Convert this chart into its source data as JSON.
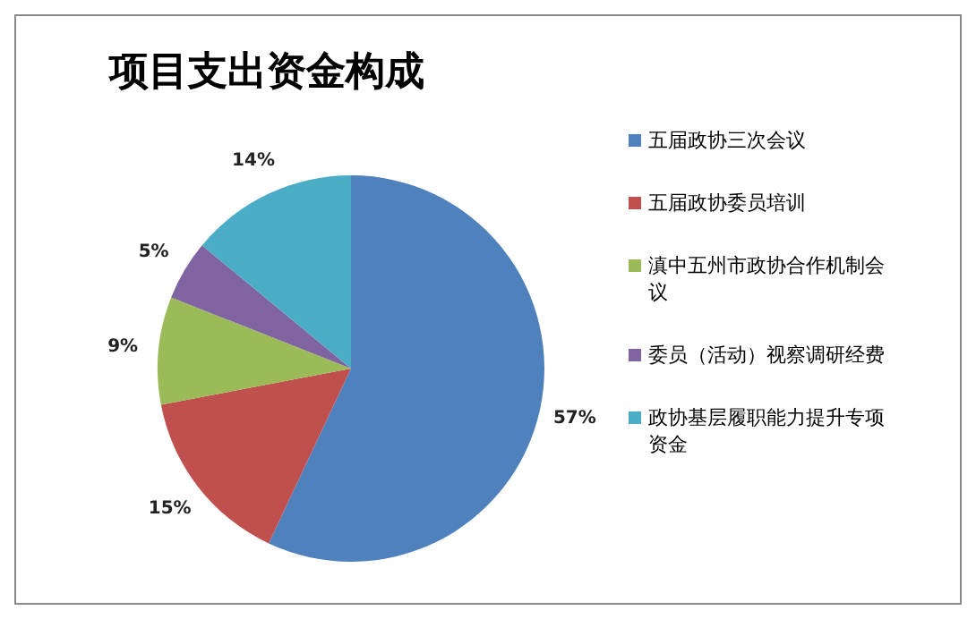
{
  "chart_data": {
    "type": "pie",
    "title": "项目支出资金构成",
    "categories": [
      "五届政协三次会议",
      "五届政协委员培训",
      "滇中五州市政协合作机制会议",
      "委员（活动）视察调研经费",
      "政协基层履职能力提升专项资金"
    ],
    "values": [
      57,
      15,
      9,
      5,
      14
    ],
    "colors": [
      "#4f81bd",
      "#c0504d",
      "#9bbb59",
      "#8064a2",
      "#4bacc6"
    ],
    "value_labels": [
      "57%",
      "15%",
      "9%",
      "5%",
      "14%"
    ],
    "legend": "right"
  }
}
